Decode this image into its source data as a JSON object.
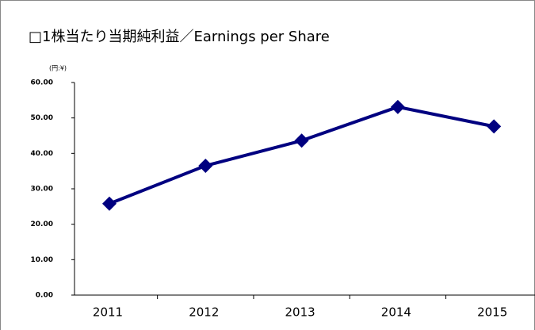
{
  "chart_data": {
    "type": "line",
    "title": "□1株当たり当期純利益／Earnings per Share",
    "y_label": "(円:¥)",
    "categories": [
      "2011",
      "2012",
      "2013",
      "2014",
      "2015"
    ],
    "values": [
      25.8,
      36.5,
      43.6,
      53.1,
      47.6
    ],
    "color": "#000080",
    "ylim": [
      0,
      60
    ],
    "yticks": [
      {
        "value": 0,
        "label": "0.00"
      },
      {
        "value": 10,
        "label": "10.00"
      },
      {
        "value": 20,
        "label": "20.00"
      },
      {
        "value": 30,
        "label": "30.00"
      },
      {
        "value": 40,
        "label": "40.00"
      },
      {
        "value": 50,
        "label": "50.00"
      },
      {
        "value": 60,
        "label": "60.00"
      }
    ],
    "grid": false
  }
}
